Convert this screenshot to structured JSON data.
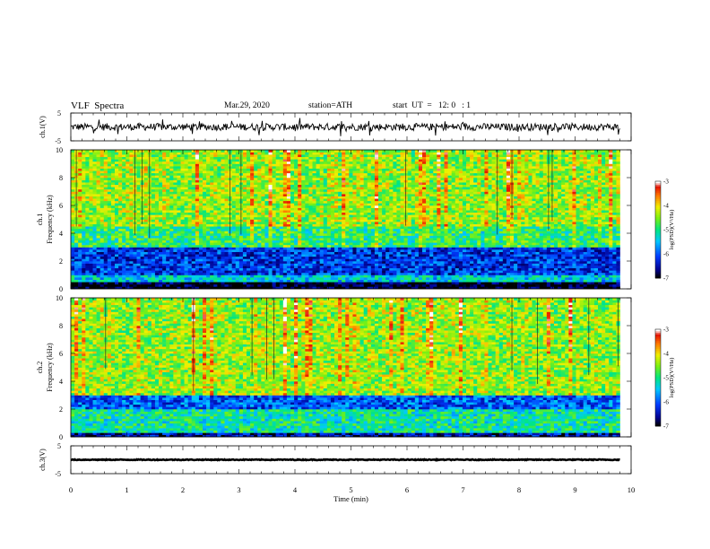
{
  "header": {
    "title": "VLF  Spectra",
    "date": "Mar.29, 2020",
    "station": "station=ATH",
    "start_ut": "start  UT  =   12: 0   : 1"
  },
  "chart_data": [
    {
      "type": "line",
      "panel": "ch1-waveform",
      "ylabel": "ch.1(V)",
      "ylim": [
        -5,
        5
      ],
      "yticks": [
        "5",
        "-5"
      ],
      "xlim": [
        0,
        10
      ],
      "series": [
        {
          "x_range": [
            0,
            9.8
          ],
          "baseline": 0,
          "noise_amplitude": 1.3
        }
      ]
    },
    {
      "type": "heatmap",
      "panel": "ch1-spectrogram",
      "ylabel": "ch.1\nFrequency  (kHz)",
      "ylim": [
        0,
        10
      ],
      "yticks": [
        "0",
        "2",
        "4",
        "6",
        "8",
        "10"
      ],
      "xlim": [
        0,
        10
      ],
      "x_range": [
        0,
        9.8
      ],
      "colorbar": {
        "label": "log(PSD)(V²/Hz)",
        "range": [
          -7,
          -3
        ],
        "ticks": [
          "-3",
          "-4",
          "-5",
          "-6",
          "-7"
        ]
      },
      "bands": [
        {
          "freq_khz": [
            0,
            0.5
          ],
          "level": -7
        },
        {
          "freq_khz": [
            0.5,
            1.0
          ],
          "level": -5.4
        },
        {
          "freq_khz": [
            1.0,
            3.0
          ],
          "level": -6.2
        },
        {
          "freq_khz": [
            3.0,
            4.5
          ],
          "level": -4.9
        },
        {
          "freq_khz": [
            4.5,
            10.0
          ],
          "level": -4.4
        }
      ]
    },
    {
      "type": "heatmap",
      "panel": "ch2-spectrogram",
      "ylabel": "ch.2\nFrequency  (kHz)",
      "ylim": [
        0,
        10
      ],
      "yticks": [
        "0",
        "2",
        "4",
        "6",
        "8",
        "10"
      ],
      "xlim": [
        0,
        10
      ],
      "x_range": [
        0,
        9.8
      ],
      "colorbar": {
        "label": "log(PSD)(V²/Hz)",
        "range": [
          -7,
          -3
        ],
        "ticks": [
          "-3",
          "-4",
          "-5",
          "-6",
          "-7"
        ]
      },
      "bands": [
        {
          "freq_khz": [
            0,
            0.3
          ],
          "level": -6.5
        },
        {
          "freq_khz": [
            0.3,
            2.0
          ],
          "level": -5.1
        },
        {
          "freq_khz": [
            2.0,
            3.0
          ],
          "level": -6.0
        },
        {
          "freq_khz": [
            3.0,
            10.0
          ],
          "level": -4.4
        }
      ]
    },
    {
      "type": "line",
      "panel": "ch3-waveform",
      "ylabel": "ch.3(V)",
      "ylim": [
        -5,
        5
      ],
      "yticks": [
        "5",
        "-5"
      ],
      "xlim": [
        0,
        10
      ],
      "series": [
        {
          "x_range": [
            0,
            9.8
          ],
          "baseline": 0,
          "noise_amplitude": 0.15
        }
      ]
    }
  ],
  "x_axis": {
    "label": "Time  (min)",
    "ticks": [
      "0",
      "1",
      "2",
      "3",
      "4",
      "5",
      "6",
      "7",
      "8",
      "9",
      "10"
    ]
  }
}
